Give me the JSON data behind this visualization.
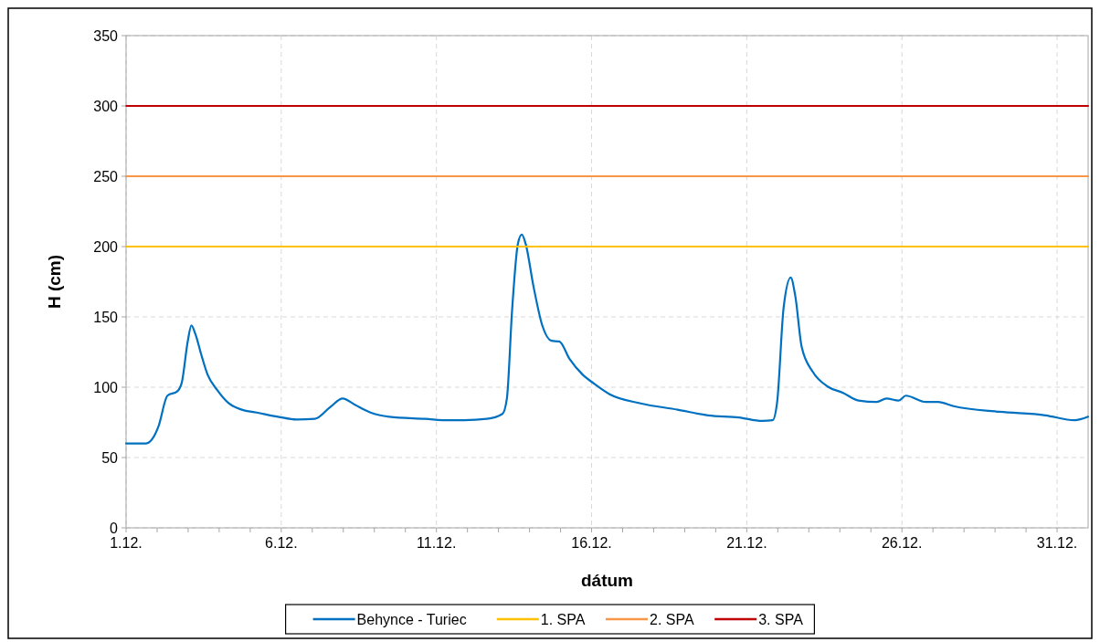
{
  "chart_data": {
    "type": "line",
    "xlabel": "dátum",
    "ylabel": "H (cm)",
    "xlim": [
      "--12-01",
      "--12-31T23:59"
    ],
    "ylim": [
      0,
      350
    ],
    "xticks": [
      {
        "value": "--12-01",
        "label": "1.12."
      },
      {
        "value": "--12-02",
        "label": null
      },
      {
        "value": "--12-03",
        "label": null
      },
      {
        "value": "--12-04",
        "label": null
      },
      {
        "value": "--12-05",
        "label": null
      },
      {
        "value": "--12-06",
        "label": "6.12."
      },
      {
        "value": "--12-07",
        "label": null
      },
      {
        "value": "--12-08",
        "label": null
      },
      {
        "value": "--12-09",
        "label": null
      },
      {
        "value": "--12-10",
        "label": null
      },
      {
        "value": "--12-11",
        "label": "11.12."
      },
      {
        "value": "--12-12",
        "label": null
      },
      {
        "value": "--12-13",
        "label": null
      },
      {
        "value": "--12-14",
        "label": null
      },
      {
        "value": "--12-15",
        "label": null
      },
      {
        "value": "--12-16",
        "label": "16.12."
      },
      {
        "value": "--12-17",
        "label": null
      },
      {
        "value": "--12-18",
        "label": null
      },
      {
        "value": "--12-19",
        "label": null
      },
      {
        "value": "--12-20",
        "label": null
      },
      {
        "value": "--12-21",
        "label": "21.12."
      },
      {
        "value": "--12-22",
        "label": null
      },
      {
        "value": "--12-23",
        "label": null
      },
      {
        "value": "--12-24",
        "label": null
      },
      {
        "value": "--12-25",
        "label": null
      },
      {
        "value": "--12-26",
        "label": "26.12."
      },
      {
        "value": "--12-27",
        "label": null
      },
      {
        "value": "--12-28",
        "label": null
      },
      {
        "value": "--12-29",
        "label": null
      },
      {
        "value": "--12-30",
        "label": null
      },
      {
        "value": "--12-31",
        "label": "31.12."
      }
    ],
    "yticks": [
      0,
      50,
      100,
      150,
      200,
      250,
      300,
      350
    ],
    "grid": true,
    "legend": "bottom",
    "marker": "none",
    "line_style": "solid",
    "series": [
      {
        "name": "Behynce - Turiec",
        "color": "#0070c0",
        "x": [
          "--12-01T00:00",
          "--12-01T15:30",
          "--12-01T20:30",
          "--12-02T01:00",
          "--12-02T08:00",
          "--12-02T15:30",
          "--12-02T19:00",
          "--12-02T23:45",
          "--12-03T02:30",
          "--12-03T05:30",
          "--12-03T10:30",
          "--12-03T15:00",
          "--12-03T22:30",
          "--12-04T07:30",
          "--12-04T17:30",
          "--12-05T05:00",
          "--12-05T21:30",
          "--12-06T12:00",
          "--12-07T02:00",
          "--12-07T14:00",
          "--12-07T23:30",
          "--12-08T09:00",
          "--12-08T21:00",
          "--12-09T11:30",
          "--12-10T15:30",
          "--12-11T09:30",
          "--12-11T15:30",
          "--12-12T15:00",
          "--12-13T03:00",
          "--12-13T06:30",
          "--12-13T10:30",
          "--12-13T15:00",
          "--12-13T18:00",
          "--12-13T21:00",
          "--12-14T03:00",
          "--12-14T10:00",
          "--12-14T17:00",
          "--12-14T23:00",
          "--12-15T07:00",
          "--12-15T17:00",
          "--12-16T02:00",
          "--12-16T14:00",
          "--12-17T14:00",
          "--12-18T18:30",
          "--12-19T18:00",
          "--12-20T18:00",
          "--12-21T12:00",
          "--12-21T20:00",
          "--12-21T23:30",
          "--12-22T04:30",
          "--12-22T10:00",
          "--12-22T13:30",
          "--12-22T18:30",
          "--12-23T03:00",
          "--12-23T14:30",
          "--12-24T02:30",
          "--12-24T14:30",
          "--12-25T04:30",
          "--12-25T12:00",
          "--12-25T21:30",
          "--12-26T03:00",
          "--12-26T18:30",
          "--12-27T04:00",
          "--12-27T16:00",
          "--12-29T03:30",
          "--12-30T15:00",
          "--12-31T13:30",
          "--12-31T23:59"
        ],
        "values": [
          60,
          60,
          63.5,
          72,
          94,
          97,
          103,
          133,
          144,
          138,
          122,
          109,
          98,
          88.5,
          84,
          82,
          79,
          77,
          77.5,
          86,
          92,
          87.5,
          82,
          79,
          77.5,
          76.5,
          76.5,
          77.5,
          81,
          92,
          154.5,
          202,
          208.5,
          202,
          172,
          143.5,
          133,
          132.5,
          120,
          109,
          102.5,
          95,
          88.5,
          84,
          80,
          78.5,
          76,
          76.5,
          89.5,
          156.5,
          178,
          165,
          128.5,
          111,
          100.5,
          96,
          90.5,
          89.5,
          92,
          90.5,
          94,
          89.5,
          89.5,
          86.5,
          82.5,
          80,
          76.5,
          79
        ]
      },
      {
        "name": "1. SPA",
        "color": "#ffc000",
        "x": [
          "--12-01",
          "--12-31T23:59"
        ],
        "values": [
          200,
          200
        ]
      },
      {
        "name": "2. SPA",
        "color": "#f79646",
        "x": [
          "--12-01",
          "--12-31T23:59"
        ],
        "values": [
          250,
          250
        ]
      },
      {
        "name": "3. SPA",
        "color": "#c00000",
        "x": [
          "--12-01",
          "--12-31T23:59"
        ],
        "values": [
          300,
          300
        ]
      }
    ]
  }
}
